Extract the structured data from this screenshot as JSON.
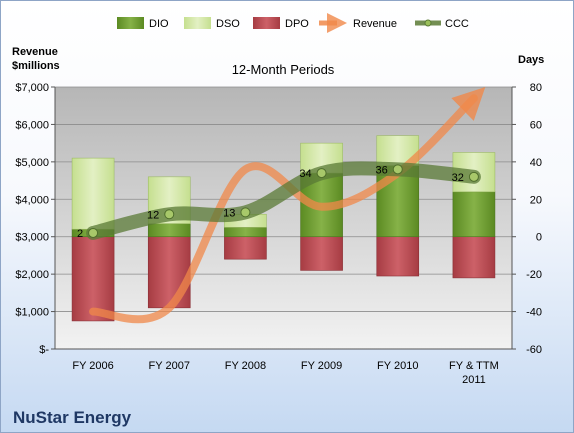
{
  "chart_data": {
    "type": "bar",
    "title": "12-Month Periods",
    "company": "NuStar Energy",
    "y_left_label_line1": "Revenue",
    "y_left_label_line2": "$millions",
    "y_right_label": "Days",
    "y_left_lim": [
      0,
      7000
    ],
    "y_right_lim": [
      -60,
      80
    ],
    "y_left_ticks": [
      "$-",
      "$1,000",
      "$2,000",
      "$3,000",
      "$4,000",
      "$5,000",
      "$6,000",
      "$7,000"
    ],
    "y_right_ticks": [
      "-60",
      "-40",
      "-20",
      "0",
      "20",
      "40",
      "60",
      "80"
    ],
    "categories": [
      [
        "FY 2006"
      ],
      [
        "FY 2007"
      ],
      [
        "FY 2008"
      ],
      [
        "FY 2009"
      ],
      [
        "FY 2010"
      ],
      [
        "FY & TTM",
        "2011"
      ]
    ],
    "series": [
      {
        "name": "DIO",
        "axis": "right",
        "kind": "stacked-bar",
        "color": "#6e9a2e",
        "values": [
          4,
          7,
          5,
          34,
          38,
          24
        ]
      },
      {
        "name": "DSO",
        "axis": "right",
        "kind": "stacked-bar",
        "color": "#d3e6a6",
        "values": [
          38,
          25,
          7,
          16,
          16,
          21
        ]
      },
      {
        "name": "DPO",
        "axis": "right",
        "kind": "negative-bar",
        "color": "#b94a50",
        "values": [
          -45,
          -38,
          -12,
          -18,
          -21,
          -22
        ]
      },
      {
        "name": "Revenue",
        "axis": "left",
        "kind": "line",
        "color": "#f0884a",
        "values": [
          1000,
          1100,
          4800,
          3800,
          4700,
          6700
        ]
      },
      {
        "name": "CCC",
        "axis": "right",
        "kind": "line",
        "color": "#5a7a35",
        "values": [
          2,
          12,
          13,
          34,
          36,
          32
        ],
        "labels": [
          "2",
          "12",
          "13",
          "34",
          "36",
          "32"
        ]
      }
    ],
    "grid": true,
    "legend_position": "top"
  }
}
